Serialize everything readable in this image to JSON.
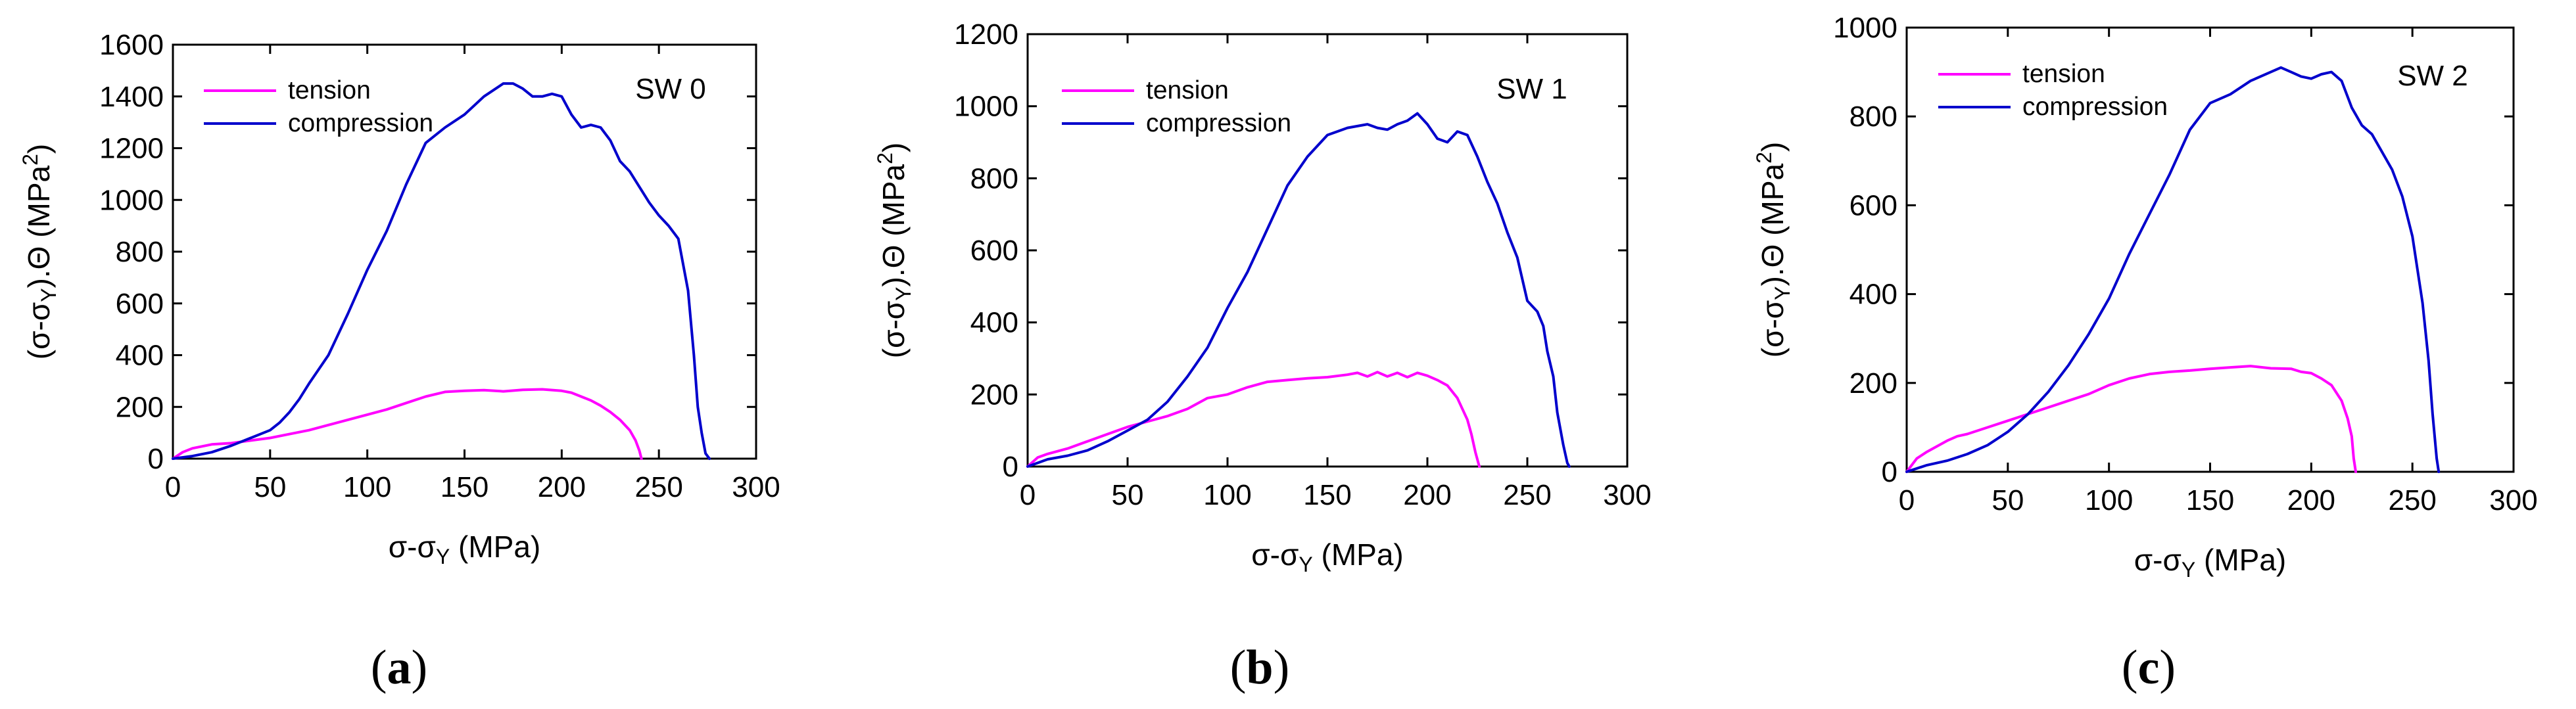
{
  "colors": {
    "tension": "#ff00ff",
    "compression": "#0000cc",
    "axis": "#000000"
  },
  "chart_data": [
    {
      "type": "line",
      "title": "SW 0",
      "caption": "a",
      "xlabel": "σ-σY (MPa)",
      "ylabel": "(σ-σY).Θ (MPa2)",
      "xlim": [
        0,
        300
      ],
      "ylim": [
        0,
        1600
      ],
      "xticks": [
        0,
        50,
        100,
        150,
        200,
        250,
        300
      ],
      "yticks": [
        0,
        200,
        400,
        600,
        800,
        1000,
        1200,
        1400,
        1600
      ],
      "legend_position": "top-left",
      "series": [
        {
          "name": "tension",
          "x": [
            0,
            5,
            10,
            20,
            30,
            40,
            50,
            60,
            70,
            80,
            90,
            100,
            110,
            120,
            130,
            140,
            150,
            160,
            170,
            180,
            190,
            200,
            205,
            210,
            215,
            220,
            225,
            230,
            235,
            238,
            240,
            241
          ],
          "y": [
            0,
            25,
            40,
            55,
            60,
            70,
            80,
            95,
            110,
            130,
            150,
            170,
            190,
            215,
            240,
            258,
            262,
            265,
            260,
            266,
            268,
            262,
            255,
            240,
            225,
            205,
            180,
            150,
            110,
            70,
            30,
            0
          ]
        },
        {
          "name": "compression",
          "x": [
            0,
            10,
            20,
            30,
            40,
            50,
            55,
            60,
            65,
            70,
            80,
            90,
            100,
            110,
            120,
            130,
            140,
            150,
            160,
            170,
            175,
            180,
            185,
            190,
            195,
            200,
            205,
            210,
            215,
            220,
            225,
            230,
            235,
            240,
            245,
            250,
            255,
            260,
            265,
            268,
            270,
            272,
            274,
            276
          ],
          "y": [
            0,
            10,
            25,
            50,
            80,
            110,
            140,
            180,
            230,
            290,
            400,
            560,
            730,
            880,
            1060,
            1220,
            1280,
            1330,
            1400,
            1450,
            1450,
            1430,
            1400,
            1400,
            1410,
            1400,
            1330,
            1280,
            1290,
            1280,
            1230,
            1150,
            1110,
            1050,
            990,
            940,
            900,
            850,
            650,
            400,
            200,
            100,
            20,
            0
          ]
        }
      ]
    },
    {
      "type": "line",
      "title": "SW 1",
      "caption": "b",
      "xlabel": "σ-σY (MPa)",
      "ylabel": "(σ-σY).Θ (MPa2)",
      "xlim": [
        0,
        300
      ],
      "ylim": [
        0,
        1200
      ],
      "xticks": [
        0,
        50,
        100,
        150,
        200,
        250,
        300
      ],
      "yticks": [
        0,
        200,
        400,
        600,
        800,
        1000,
        1200
      ],
      "legend_position": "top-left",
      "series": [
        {
          "name": "tension",
          "x": [
            0,
            5,
            10,
            20,
            30,
            40,
            50,
            60,
            70,
            80,
            90,
            100,
            110,
            120,
            130,
            140,
            150,
            160,
            165,
            170,
            175,
            180,
            185,
            190,
            195,
            200,
            205,
            210,
            215,
            220,
            222,
            224,
            226
          ],
          "y": [
            0,
            25,
            35,
            50,
            70,
            90,
            110,
            125,
            140,
            160,
            190,
            200,
            220,
            235,
            240,
            245,
            248,
            255,
            260,
            250,
            262,
            250,
            260,
            248,
            260,
            252,
            240,
            225,
            190,
            130,
            90,
            40,
            0
          ]
        },
        {
          "name": "compression",
          "x": [
            0,
            10,
            20,
            30,
            40,
            50,
            60,
            70,
            80,
            90,
            100,
            110,
            120,
            130,
            140,
            150,
            160,
            170,
            175,
            180,
            185,
            190,
            195,
            200,
            205,
            210,
            215,
            220,
            225,
            230,
            235,
            240,
            245,
            250,
            255,
            258,
            260,
            263,
            265,
            268,
            270,
            271
          ],
          "y": [
            0,
            20,
            30,
            45,
            70,
            100,
            130,
            180,
            250,
            330,
            440,
            540,
            660,
            780,
            860,
            920,
            940,
            950,
            940,
            935,
            950,
            960,
            980,
            950,
            910,
            900,
            930,
            920,
            860,
            790,
            730,
            650,
            580,
            460,
            430,
            390,
            320,
            250,
            150,
            60,
            10,
            0
          ]
        }
      ]
    },
    {
      "type": "line",
      "title": "SW 2",
      "caption": "c",
      "xlabel": "σ-σY (MPa)",
      "ylabel": "(σ-σY).Θ (MPa2)",
      "xlim": [
        0,
        300
      ],
      "ylim": [
        0,
        1000
      ],
      "xticks": [
        0,
        50,
        100,
        150,
        200,
        250,
        300
      ],
      "yticks": [
        0,
        200,
        400,
        600,
        800,
        1000
      ],
      "legend_position": "top-left",
      "series": [
        {
          "name": "tension",
          "x": [
            0,
            5,
            10,
            20,
            25,
            30,
            40,
            50,
            60,
            70,
            80,
            90,
            100,
            110,
            120,
            130,
            140,
            150,
            160,
            170,
            180,
            190,
            195,
            200,
            205,
            210,
            215,
            218,
            220,
            221,
            222
          ],
          "y": [
            0,
            30,
            45,
            70,
            80,
            85,
            100,
            115,
            130,
            145,
            160,
            175,
            195,
            210,
            220,
            225,
            228,
            232,
            235,
            238,
            233,
            232,
            225,
            222,
            210,
            195,
            160,
            120,
            80,
            30,
            0
          ]
        },
        {
          "name": "compression",
          "x": [
            0,
            10,
            20,
            30,
            40,
            50,
            60,
            70,
            80,
            90,
            100,
            110,
            120,
            130,
            140,
            150,
            160,
            170,
            180,
            185,
            190,
            195,
            200,
            205,
            210,
            215,
            220,
            225,
            230,
            235,
            240,
            245,
            250,
            255,
            258,
            260,
            262,
            263
          ],
          "y": [
            0,
            15,
            25,
            40,
            60,
            90,
            130,
            180,
            240,
            310,
            390,
            490,
            580,
            670,
            770,
            830,
            850,
            880,
            900,
            910,
            900,
            890,
            885,
            895,
            900,
            880,
            820,
            780,
            760,
            720,
            680,
            620,
            530,
            380,
            250,
            130,
            30,
            0
          ]
        }
      ]
    }
  ]
}
